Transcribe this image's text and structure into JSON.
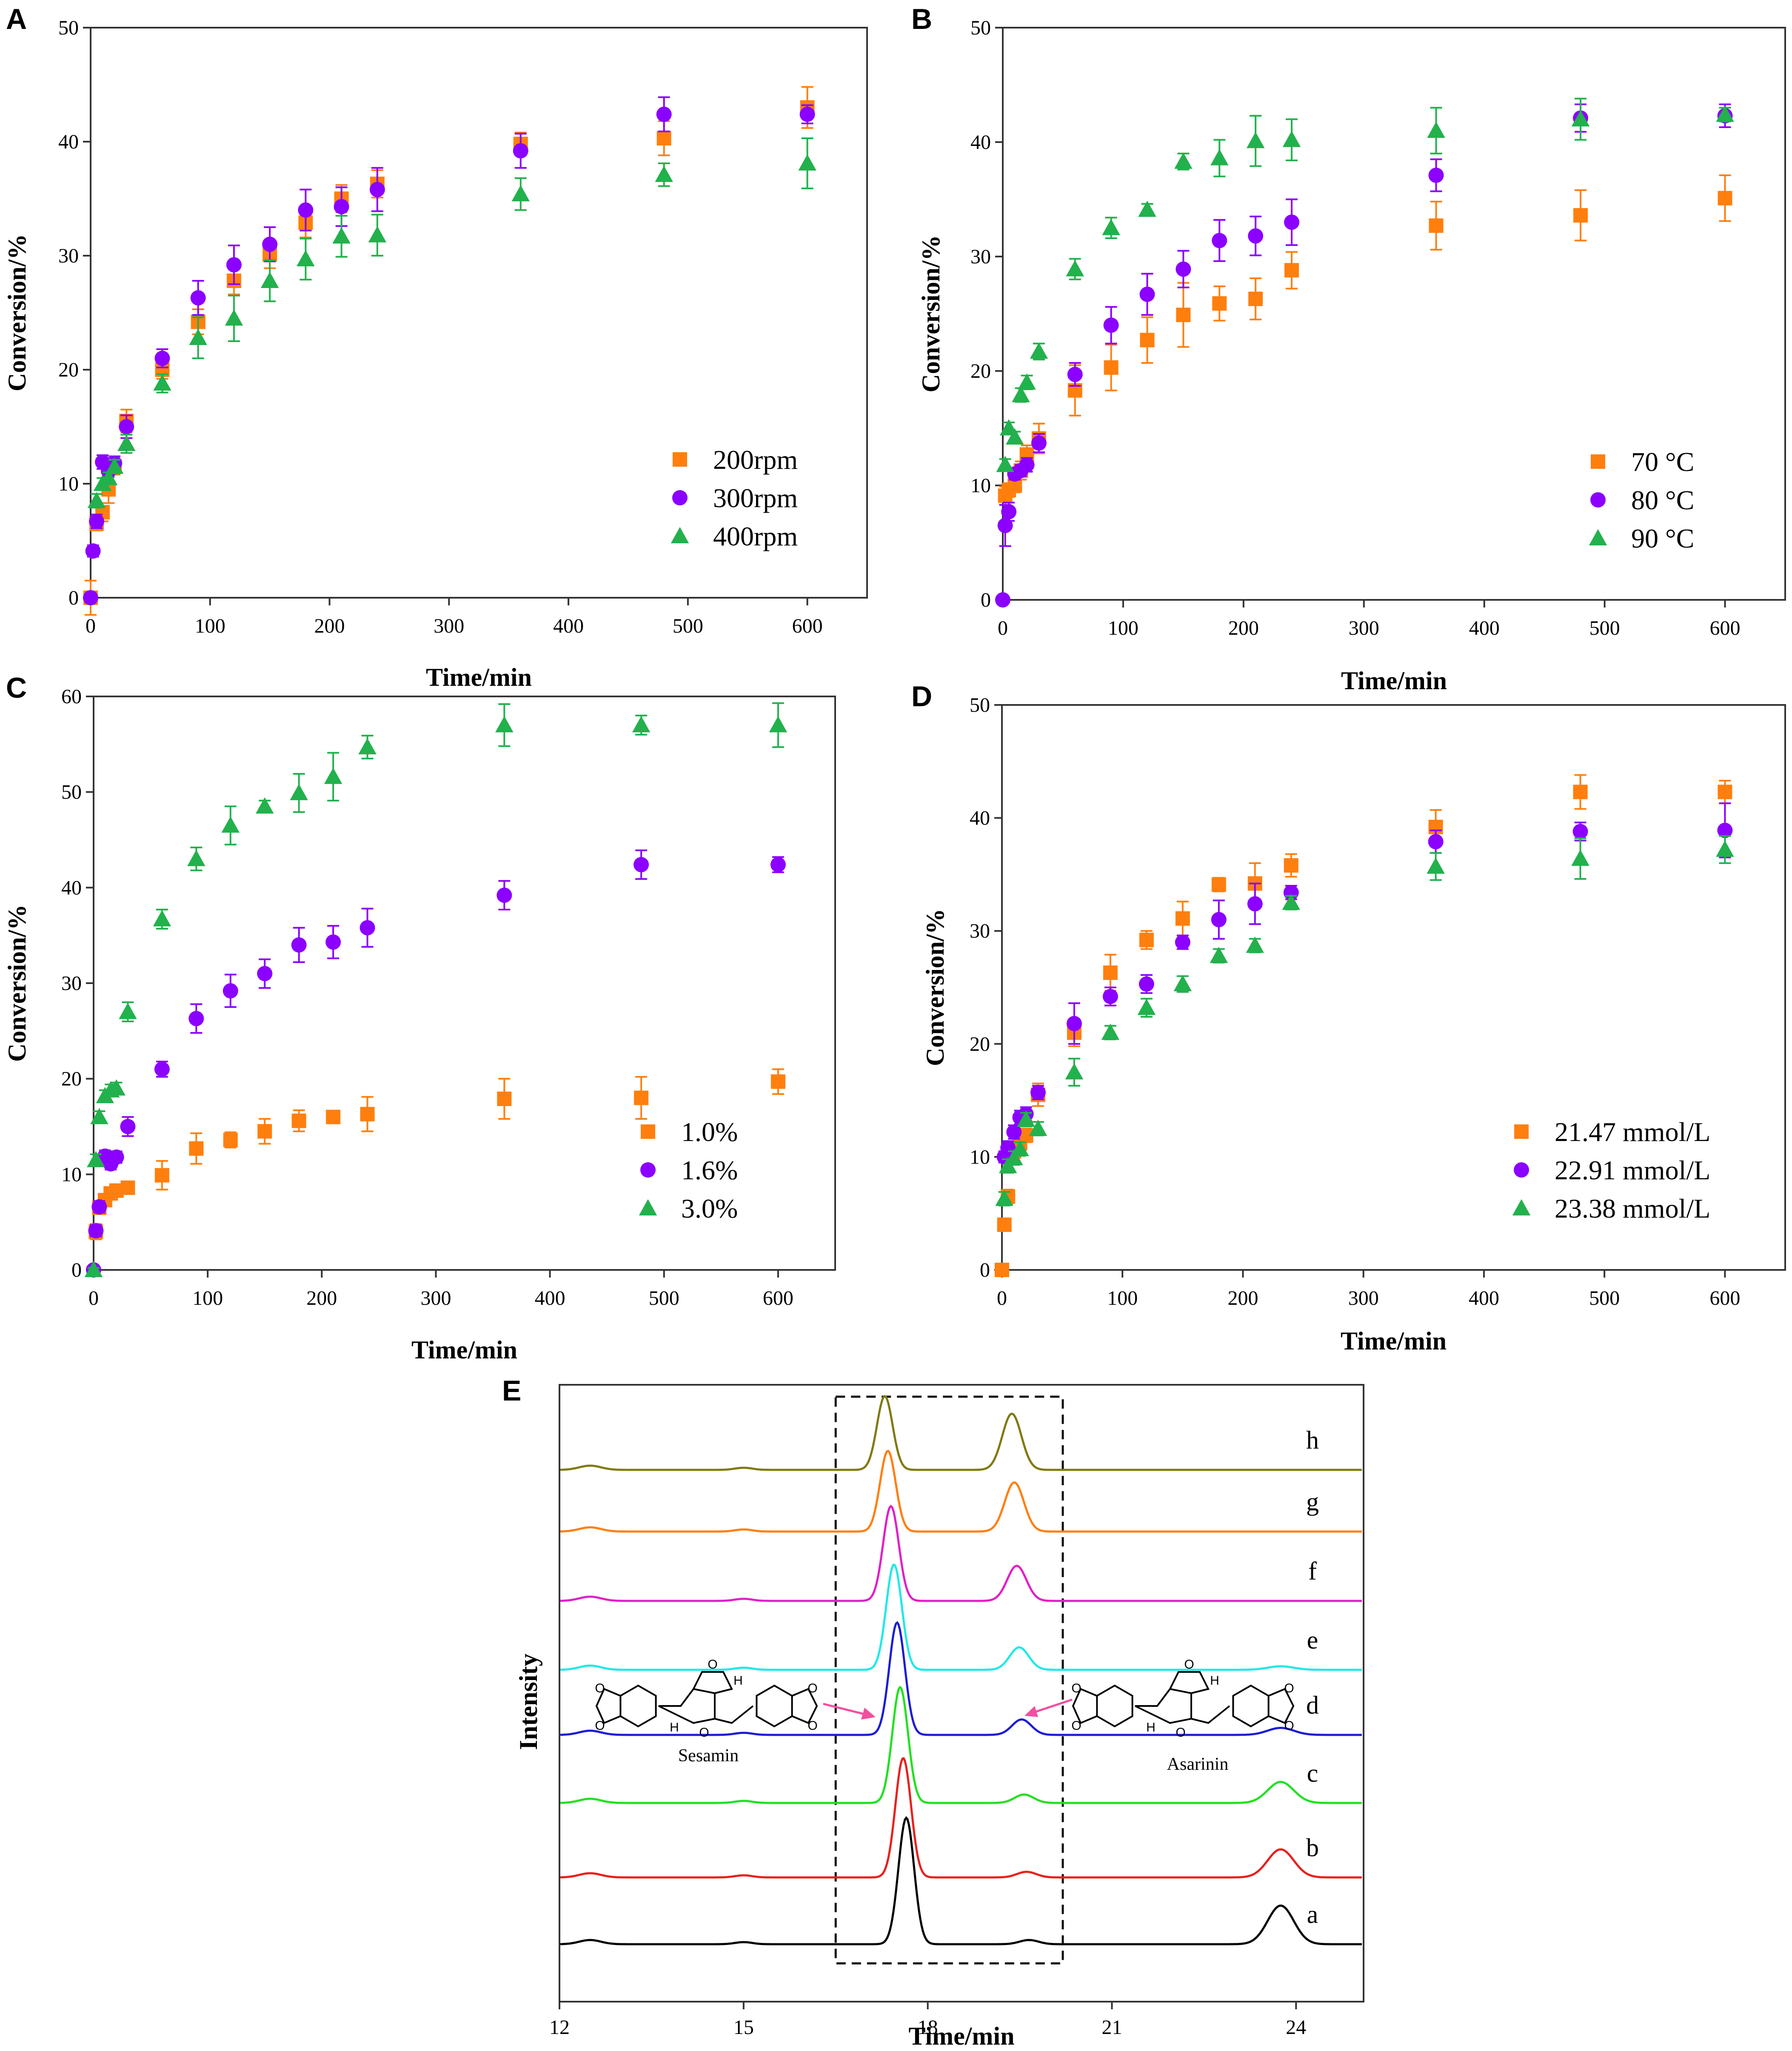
{
  "chart_data": [
    {
      "panel": "A",
      "type": "scatter",
      "xlabel": "Time/min",
      "ylabel": "Conversion/%",
      "xlim": [
        0,
        650
      ],
      "ylim": [
        0,
        50
      ],
      "xticks": [
        0,
        100,
        200,
        300,
        400,
        500,
        600
      ],
      "yticks": [
        0,
        10,
        20,
        30,
        40,
        50
      ],
      "legend_position": "lower-right",
      "series": [
        {
          "name": "200rpm",
          "marker": "square",
          "color": "#FF7F0E",
          "x": [
            0,
            5,
            10,
            15,
            20,
            30,
            60,
            90,
            120,
            150,
            180,
            210,
            240,
            360,
            480,
            600
          ],
          "y": [
            0,
            6.5,
            7.5,
            9.5,
            11.5,
            15.5,
            20,
            24.2,
            27.8,
            30.1,
            32.9,
            35,
            36.3,
            39.8,
            40.3,
            43
          ],
          "err": [
            1.5,
            0.6,
            0.8,
            1.2,
            0.7,
            1,
            0.8,
            1.1,
            1.2,
            1.2,
            1.3,
            1.2,
            1.2,
            1,
            1.5,
            1.8
          ]
        },
        {
          "name": "300rpm",
          "marker": "circle",
          "color": "#8B00FF",
          "x": [
            0,
            2,
            5,
            10,
            15,
            20,
            30,
            60,
            90,
            120,
            150,
            180,
            210,
            240,
            360,
            480,
            600
          ],
          "y": [
            0,
            4.1,
            6.7,
            11.9,
            11.1,
            11.8,
            15,
            21,
            26.3,
            29.2,
            31,
            34,
            34.3,
            35.8,
            39.2,
            42.4,
            42.4
          ],
          "err": [
            0.3,
            0.5,
            0.6,
            0.6,
            0.5,
            0.6,
            1,
            0.8,
            1.5,
            1.7,
            1.5,
            1.8,
            1.7,
            1.9,
            1.5,
            1.5,
            0.8
          ]
        },
        {
          "name": "400rpm",
          "marker": "triangle",
          "color": "#22B14C",
          "x": [
            5,
            10,
            15,
            20,
            30,
            60,
            90,
            120,
            150,
            180,
            210,
            240,
            360,
            480,
            600
          ],
          "y": [
            8.5,
            10,
            10.5,
            11.5,
            13.5,
            18.8,
            22.8,
            24.5,
            27.8,
            29.7,
            31.7,
            31.8,
            35.4,
            37.1,
            38.1
          ],
          "err": [
            0.6,
            0.5,
            0.5,
            0.6,
            0.8,
            0.8,
            1.8,
            2,
            1.8,
            1.8,
            1.8,
            1.8,
            1.4,
            1,
            2.2
          ]
        }
      ]
    },
    {
      "panel": "B",
      "type": "scatter",
      "xlabel": "Time/min",
      "ylabel": "Conversion/%",
      "xlim": [
        0,
        650
      ],
      "ylim": [
        0,
        50
      ],
      "xticks": [
        0,
        100,
        200,
        300,
        400,
        500,
        600
      ],
      "yticks": [
        0,
        10,
        20,
        30,
        40,
        50
      ],
      "legend_position": "lower-right",
      "series": [
        {
          "name": "70 °C",
          "marker": "square",
          "color": "#FF7F0E",
          "x": [
            2,
            5,
            10,
            15,
            20,
            30,
            60,
            90,
            120,
            150,
            180,
            210,
            240,
            360,
            480,
            600
          ],
          "y": [
            9.1,
            9.6,
            10,
            11.3,
            12.7,
            14.1,
            18.3,
            20.3,
            22.7,
            24.9,
            25.9,
            26.3,
            28.8,
            32.7,
            33.6,
            35.1
          ],
          "err": [
            0.8,
            0.6,
            0.6,
            0.8,
            0.8,
            1.3,
            2.2,
            2,
            2,
            2.8,
            1.5,
            1.8,
            1.6,
            2.1,
            2.2,
            2
          ]
        },
        {
          "name": "80 °C",
          "marker": "circle",
          "color": "#8B00FF",
          "x": [
            0,
            2,
            5,
            10,
            15,
            20,
            30,
            60,
            90,
            120,
            150,
            180,
            210,
            240,
            360,
            480,
            600
          ],
          "y": [
            0,
            6.5,
            7.7,
            11,
            11.3,
            11.8,
            13.7,
            19.7,
            24,
            26.7,
            28.9,
            31.4,
            31.8,
            33,
            37.1,
            42.1,
            42.3
          ],
          "err": [
            0.2,
            1.8,
            0.8,
            0.5,
            0.5,
            0.6,
            0.8,
            1,
            1.6,
            1.8,
            1.6,
            1.8,
            1.7,
            2,
            1.4,
            1.2,
            1
          ]
        },
        {
          "name": "90 °C",
          "marker": "triangle",
          "color": "#22B14C",
          "x": [
            2,
            5,
            10,
            15,
            20,
            30,
            60,
            90,
            120,
            150,
            180,
            210,
            240,
            360,
            480,
            600
          ],
          "y": [
            11.8,
            15,
            14.2,
            17.9,
            19,
            21.7,
            28.9,
            32.5,
            34.1,
            38.3,
            38.6,
            40.1,
            40.2,
            41,
            42,
            42.4
          ],
          "err": [
            0.5,
            0.5,
            0.5,
            0.6,
            0.6,
            0.7,
            0.9,
            0.9,
            0.5,
            0.7,
            1.6,
            2.2,
            1.8,
            2,
            1.8,
            0.6
          ]
        }
      ]
    },
    {
      "panel": "C",
      "type": "scatter",
      "xlabel": "Time/min",
      "ylabel": "Conversion/%",
      "xlim": [
        0,
        650
      ],
      "ylim": [
        0,
        60
      ],
      "xticks": [
        0,
        100,
        200,
        300,
        400,
        500,
        600
      ],
      "yticks": [
        0,
        10,
        20,
        30,
        40,
        50,
        60
      ],
      "legend_position": "lower-right",
      "series": [
        {
          "name": "1.0%",
          "marker": "square",
          "color": "#FF7F0E",
          "x": [
            2,
            5,
            10,
            15,
            20,
            30,
            60,
            90,
            120,
            150,
            180,
            210,
            240,
            360,
            480,
            600
          ],
          "y": [
            4,
            6.5,
            7.3,
            8,
            8.3,
            8.6,
            9.9,
            12.7,
            13.6,
            14.5,
            15.6,
            16,
            16.3,
            17.9,
            18,
            19.7
          ],
          "err": [
            0.8,
            0.6,
            0.6,
            0.6,
            0.6,
            0.5,
            1.5,
            1.6,
            0.8,
            1.3,
            1.1,
            0.6,
            1.8,
            2.1,
            2.2,
            1.3
          ]
        },
        {
          "name": "1.6%",
          "marker": "circle",
          "color": "#8B00FF",
          "x": [
            0,
            2,
            5,
            10,
            15,
            20,
            30,
            60,
            90,
            120,
            150,
            180,
            210,
            240,
            360,
            480,
            600
          ],
          "y": [
            0,
            4.1,
            6.6,
            11.9,
            11.1,
            11.8,
            15,
            21,
            26.3,
            29.2,
            31,
            34,
            34.3,
            35.8,
            39.2,
            42.4,
            42.4
          ],
          "err": [
            0.2,
            0.6,
            0.6,
            0.6,
            0.6,
            0.6,
            1,
            0.8,
            1.5,
            1.7,
            1.5,
            1.8,
            1.7,
            2,
            1.5,
            1.5,
            0.8
          ]
        },
        {
          "name": "3.0%",
          "marker": "triangle",
          "color": "#22B14C",
          "x": [
            0,
            2,
            5,
            10,
            15,
            20,
            30,
            60,
            90,
            120,
            150,
            180,
            210,
            240,
            360,
            480,
            600
          ],
          "y": [
            0,
            11.5,
            16,
            18.2,
            18.8,
            19,
            27,
            36.7,
            43,
            46.5,
            48.5,
            49.9,
            51.6,
            54.7,
            57,
            57,
            57
          ],
          "err": [
            0.2,
            0.6,
            0.6,
            0.6,
            0.6,
            0.6,
            1,
            1,
            1.2,
            2,
            0.6,
            2,
            2.5,
            1.2,
            2.2,
            1,
            2.3
          ]
        }
      ]
    },
    {
      "panel": "D",
      "type": "scatter",
      "xlabel": "Time/min",
      "ylabel": "Conversion/%",
      "xlim": [
        0,
        650
      ],
      "ylim": [
        0,
        50
      ],
      "xticks": [
        0,
        100,
        200,
        300,
        400,
        500,
        600
      ],
      "yticks": [
        0,
        10,
        20,
        30,
        40,
        50
      ],
      "legend_position": "lower-right",
      "series": [
        {
          "name": "21.47 mmol/L",
          "marker": "square",
          "color": "#FF7F0E",
          "x": [
            0,
            2,
            5,
            10,
            15,
            20,
            30,
            60,
            90,
            120,
            150,
            180,
            210,
            240,
            360,
            480,
            600
          ],
          "y": [
            0,
            4,
            6.5,
            10.5,
            11.2,
            11.9,
            15.5,
            21,
            26.3,
            29.2,
            31.1,
            34.1,
            34.2,
            35.8,
            39.2,
            42.3,
            42.3
          ],
          "err": [
            0.2,
            0.5,
            0.6,
            0.6,
            0.6,
            0.6,
            1,
            1.2,
            1.6,
            0.8,
            1.5,
            0.6,
            1.8,
            1,
            1.5,
            1.5,
            1
          ]
        },
        {
          "name": "22.91 mmol/L",
          "marker": "circle",
          "color": "#8B00FF",
          "x": [
            2,
            5,
            10,
            15,
            20,
            30,
            60,
            90,
            120,
            150,
            180,
            210,
            240,
            360,
            480,
            600
          ],
          "y": [
            10,
            10.8,
            12.2,
            13.5,
            13.8,
            15.7,
            21.8,
            24.2,
            25.3,
            29,
            31,
            32.4,
            33.4,
            37.9,
            38.8,
            38.9
          ],
          "err": [
            0.5,
            0.6,
            0.6,
            0.6,
            0.6,
            0.6,
            1.8,
            0.8,
            0.8,
            0.6,
            1.7,
            1.8,
            0.6,
            1,
            0.8,
            2.4
          ]
        },
        {
          "name": "23.38 mmol/L",
          "marker": "triangle",
          "color": "#22B14C",
          "x": [
            2,
            5,
            10,
            15,
            20,
            30,
            60,
            90,
            120,
            150,
            180,
            210,
            240,
            360,
            480,
            600
          ],
          "y": [
            6.3,
            9.2,
            9.9,
            10.7,
            13.3,
            12.5,
            17.5,
            21,
            23.2,
            25.3,
            27.8,
            28.7,
            32.5,
            35.7,
            36.4,
            37.2
          ],
          "err": [
            0.6,
            0.6,
            0.6,
            0.6,
            0.6,
            0.6,
            1.2,
            0.6,
            0.8,
            0.7,
            0.6,
            0.6,
            0.6,
            1.2,
            1.8,
            1.2
          ]
        }
      ]
    },
    {
      "panel": "E",
      "type": "line",
      "subtype": "chromatogram",
      "xlabel": "Time/min",
      "ylabel": "Intensity",
      "xlim": [
        12,
        25.1
      ],
      "xticks": [
        12,
        15,
        18,
        21,
        24
      ],
      "highlight_window": [
        16.5,
        20.2
      ],
      "compound_labels": [
        "Sesamin",
        "Asarinin"
      ],
      "atom_labels": {
        "oxygen": "O",
        "hydrogen": "H"
      },
      "series": [
        {
          "name": "a",
          "color": "#000000",
          "sesamin_peak": 1.8,
          "asarinin_peak": 0.06,
          "peak_24": 0.55
        },
        {
          "name": "b",
          "color": "#E8201C",
          "sesamin_peak": 1.7,
          "asarinin_peak": 0.08,
          "peak_24": 0.4
        },
        {
          "name": "c",
          "color": "#22E022",
          "sesamin_peak": 1.65,
          "asarinin_peak": 0.12,
          "peak_24": 0.3
        },
        {
          "name": "d",
          "color": "#1C1CD4",
          "sesamin_peak": 1.6,
          "asarinin_peak": 0.22,
          "peak_24": 0.1
        },
        {
          "name": "e",
          "color": "#22E8E8",
          "sesamin_peak": 1.5,
          "asarinin_peak": 0.32,
          "peak_24": 0.05
        },
        {
          "name": "f",
          "color": "#E020C8",
          "sesamin_peak": 1.35,
          "asarinin_peak": 0.5,
          "peak_24": 0.0
        },
        {
          "name": "g",
          "color": "#FF7F0E",
          "sesamin_peak": 1.15,
          "asarinin_peak": 0.7,
          "peak_24": 0.0
        },
        {
          "name": "h",
          "color": "#7F7A10",
          "sesamin_peak": 1.05,
          "asarinin_peak": 0.8,
          "peak_24": 0.0
        }
      ]
    }
  ]
}
